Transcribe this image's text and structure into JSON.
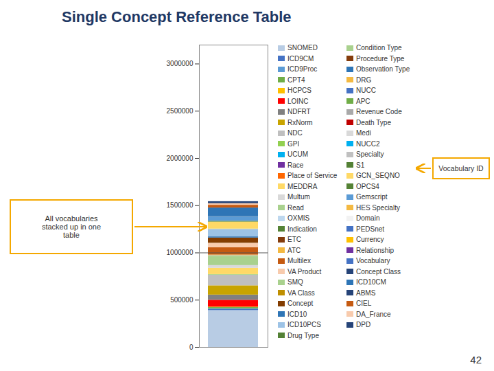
{
  "chart_data": {
    "type": "bar",
    "title": "Single Concept Reference Table",
    "stacked": true,
    "legend": "right",
    "tick_labels": "y",
    "categories": [
      null
    ],
    "ylim": [
      0,
      3200000
    ],
    "yticks": [
      0,
      500000,
      1000000,
      1500000,
      2000000,
      2500000,
      3000000
    ],
    "hline": 1000000,
    "annotations": [
      "All vocabularies\nstacked up in one\ntable",
      "Vocabulary ID",
      "42"
    ],
    "series": [
      {
        "name": "SNOMED",
        "color": "#b8cce4",
        "values": [
          390000
        ]
      },
      {
        "name": "ICD9CM",
        "color": "#4472c4",
        "values": [
          15000
        ]
      },
      {
        "name": "ICD9Proc",
        "color": "#5b9bd5",
        "values": [
          3500
        ]
      },
      {
        "name": "CPT4",
        "color": "#70ad47",
        "values": [
          13000
        ]
      },
      {
        "name": "HCPCS",
        "color": "#ffc000",
        "values": [
          5500
        ]
      },
      {
        "name": "LOINC",
        "color": "#ff0000",
        "values": [
          72000
        ]
      },
      {
        "name": "NDFRT",
        "color": "#808080",
        "values": [
          55000
        ]
      },
      {
        "name": "RxNorm",
        "color": "#c8a400",
        "values": [
          98000
        ]
      },
      {
        "name": "NDC",
        "color": "#bfbfbf",
        "values": [
          115000
        ]
      },
      {
        "name": "GPI",
        "color": "#92d050",
        "values": [
          4000
        ]
      },
      {
        "name": "UCUM",
        "color": "#00b0f0",
        "values": [
          500
        ]
      },
      {
        "name": "Race",
        "color": "#7030a0",
        "values": [
          10
        ]
      },
      {
        "name": "Place of Service",
        "color": "#ff6600",
        "values": [
          60
        ]
      },
      {
        "name": "MEDDRA",
        "color": "#ffd966",
        "values": [
          66000
        ]
      },
      {
        "name": "Multum",
        "color": "#d9d9d9",
        "values": [
          29000
        ]
      },
      {
        "name": "Read",
        "color": "#a9d18e",
        "values": [
          99000
        ]
      },
      {
        "name": "OXMIS",
        "color": "#bdd7ee",
        "values": [
          4000
        ]
      },
      {
        "name": "Indication",
        "color": "#548235",
        "values": [
          1500
        ]
      },
      {
        "name": "ETC",
        "color": "#843c0c",
        "values": [
          800
        ]
      },
      {
        "name": "ATC",
        "color": "#f4b942",
        "values": [
          6000
        ]
      },
      {
        "name": "Multilex",
        "color": "#c55a11",
        "values": [
          77000
        ]
      },
      {
        "name": "VA Product",
        "color": "#f8cbad",
        "values": [
          47000
        ]
      },
      {
        "name": "SMQ",
        "color": "#a9d18e",
        "values": [
          700
        ]
      },
      {
        "name": "VA Class",
        "color": "#bf8f00",
        "values": [
          500
        ]
      },
      {
        "name": "Concept",
        "color": "#833c00",
        "values": [
          55000
        ]
      },
      {
        "name": "ICD10",
        "color": "#2e75b6",
        "values": [
          12000
        ]
      },
      {
        "name": "ICD10PCS",
        "color": "#9dc3e6",
        "values": [
          76000
        ]
      },
      {
        "name": "Drug Type",
        "color": "#538135",
        "values": [
          15
        ]
      },
      {
        "name": "Condition Type",
        "color": "#a9d18e",
        "values": [
          18
        ]
      },
      {
        "name": "Procedure Type",
        "color": "#843c0c",
        "values": [
          12
        ]
      },
      {
        "name": "Observation Type",
        "color": "#2e75b6",
        "values": [
          12
        ]
      },
      {
        "name": "DRG",
        "color": "#f4b942",
        "values": [
          700
        ]
      },
      {
        "name": "NUCC",
        "color": "#4472c4",
        "values": [
          900
        ]
      },
      {
        "name": "APC",
        "color": "#70ad47",
        "values": [
          700
        ]
      },
      {
        "name": "Revenue Code",
        "color": "#a9a9a9",
        "values": [
          1000
        ]
      },
      {
        "name": "Death Type",
        "color": "#c00000",
        "values": [
          10
        ]
      },
      {
        "name": "Medi",
        "color": "#d9d9d9",
        "values": [
          2000
        ]
      },
      {
        "name": "NUCC2",
        "color": "#00b0f0",
        "values": [
          900
        ]
      },
      {
        "name": "Specialty",
        "color": "#c0c0c0",
        "values": [
          300
        ]
      },
      {
        "name": "S1",
        "color": "#538135",
        "values": [
          100
        ]
      },
      {
        "name": "GCN_SEQNO",
        "color": "#ffd966",
        "values": [
          74000
        ]
      },
      {
        "name": "OPCS4",
        "color": "#548235",
        "values": [
          8500
        ]
      },
      {
        "name": "Gemscript",
        "color": "#5b9bd5",
        "values": [
          46000
        ]
      },
      {
        "name": "HES Specialty",
        "color": "#f4b942",
        "values": [
          500
        ]
      },
      {
        "name": "Domain",
        "color": "#f2f2f2",
        "values": [
          20
        ]
      },
      {
        "name": "PEDSnet",
        "color": "#4472c4",
        "values": [
          200
        ]
      },
      {
        "name": "Currency",
        "color": "#ffc000",
        "values": [
          80
        ]
      },
      {
        "name": "Relationship",
        "color": "#7030a0",
        "values": [
          600
        ]
      },
      {
        "name": "Vocabulary",
        "color": "#4472c4",
        "values": [
          400
        ]
      },
      {
        "name": "Concept Class",
        "color": "#264478",
        "values": [
          400
        ]
      },
      {
        "name": "ICD10CM",
        "color": "#2e75b6",
        "values": [
          92000
        ]
      },
      {
        "name": "ABMS",
        "color": "#264478",
        "values": [
          200
        ]
      },
      {
        "name": "CIEL",
        "color": "#c55a11",
        "values": [
          29000
        ]
      },
      {
        "name": "DA_France",
        "color": "#f8cbad",
        "values": [
          17000
        ]
      },
      {
        "name": "DPD",
        "color": "#264478",
        "values": [
          21000
        ]
      }
    ]
  }
}
